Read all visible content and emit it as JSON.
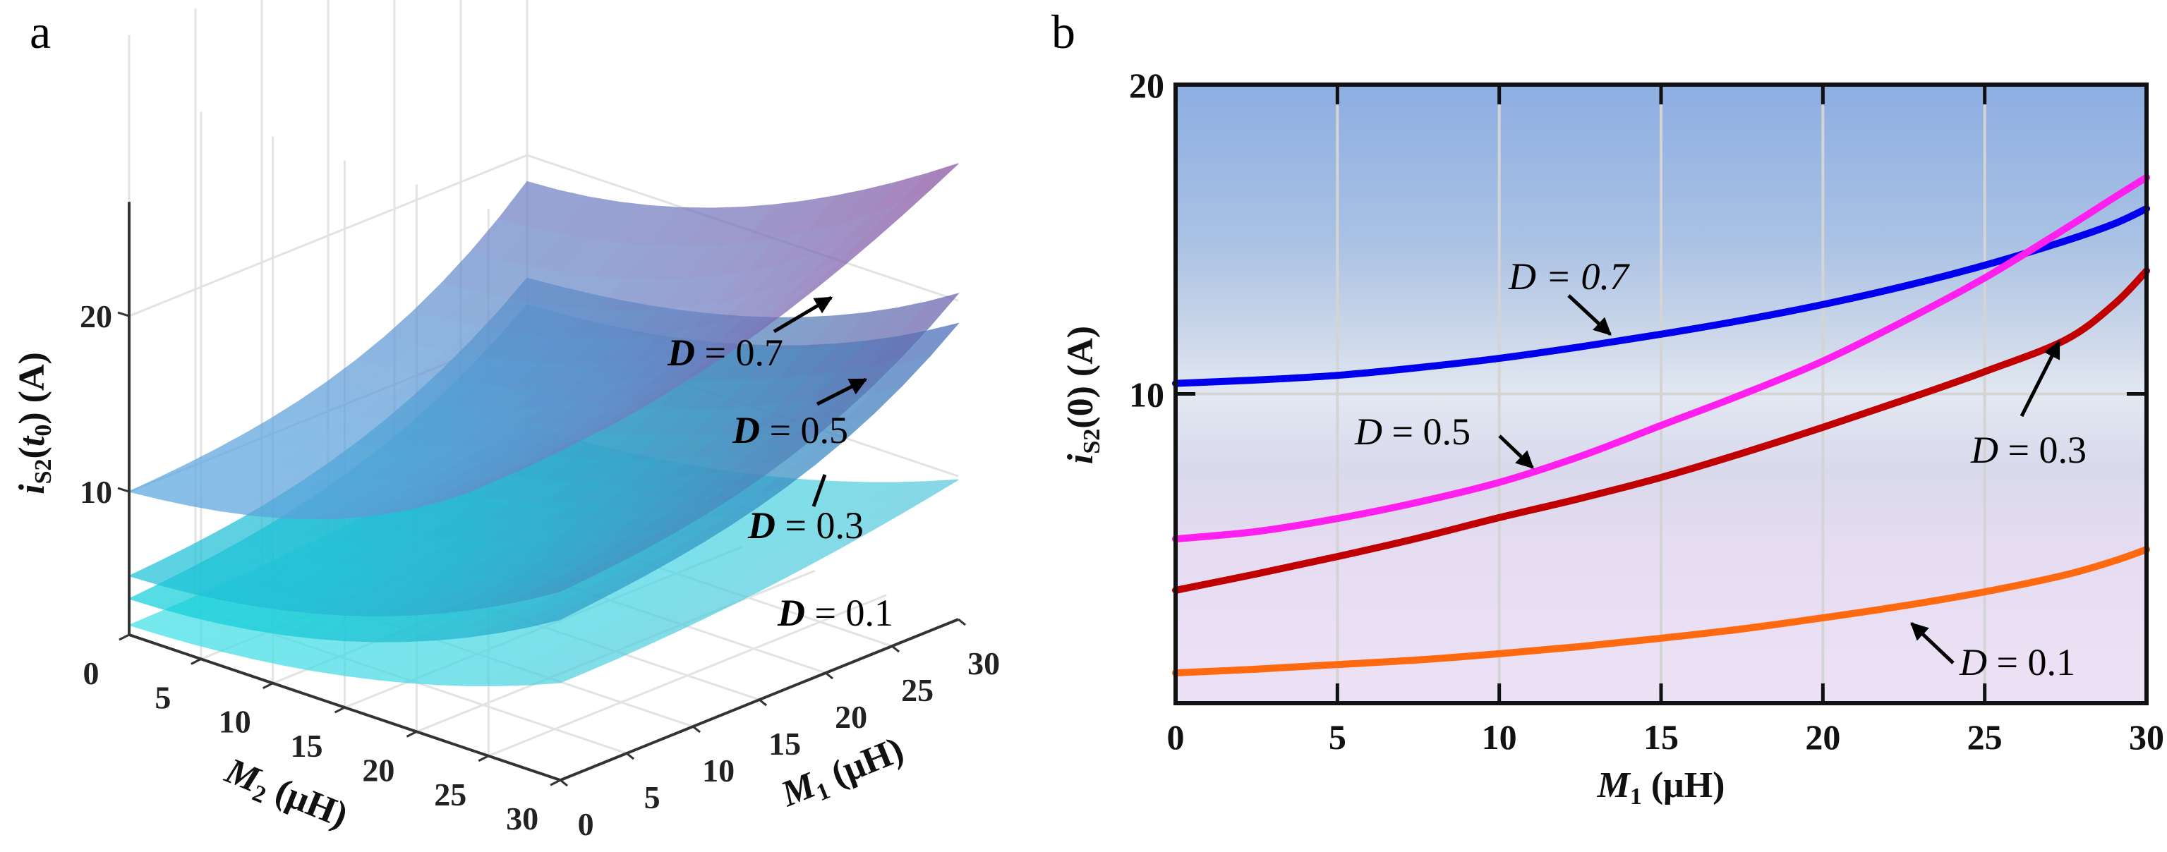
{
  "figure": {
    "panel_a_label": "a",
    "panel_b_label": "b"
  },
  "chart_data": [
    {
      "id": "panel-a",
      "type": "surface3d",
      "title": "",
      "xlabel": "M1 (μH)",
      "ylabel": "M2 (μH)",
      "zlabel": "iS2(t0) (A)",
      "x_ticks": [
        "0",
        "5",
        "10",
        "15",
        "20",
        "25",
        "30"
      ],
      "y_ticks": [
        "0",
        "5",
        "10",
        "15",
        "20",
        "25",
        "30"
      ],
      "z_ticks": [
        "10",
        "20"
      ],
      "xlim": [
        0,
        30
      ],
      "ylim": [
        0,
        30
      ],
      "zlim": [
        1.85,
        28
      ],
      "grid": true,
      "grid_axes_x": [
        0,
        10,
        20,
        30
      ],
      "grid_axes_y": [
        0,
        10,
        20,
        30
      ],
      "surfaces": [
        {
          "name": "D = 0.1",
          "color_low": "#3fe0e6",
          "color_high": "#5cc7dc",
          "z": [
            [
              2.4,
              2.7,
              3.4,
              4.6
            ],
            [
              3.0,
              3.3,
              4.0,
              5.3
            ],
            [
              4.6,
              4.9,
              5.7,
              7.0
            ],
            [
              7.4,
              7.7,
              8.5,
              9.8
            ]
          ]
        },
        {
          "name": "D = 0.3",
          "color_low": "#14d0da",
          "color_high": "#4a63b4",
          "z": [
            [
              3.9,
              4.8,
              7.0,
              11.5
            ],
            [
              4.7,
              5.7,
              7.9,
              12.4
            ],
            [
              7.0,
              7.9,
              10.2,
              14.7
            ],
            [
              11.0,
              12.0,
              14.2,
              18.7
            ]
          ]
        },
        {
          "name": "D = 0.5",
          "color_low": "#1ec3d8",
          "color_high": "#6f5aa8",
          "z": [
            [
              5.2,
              6.1,
              8.4,
              13.0
            ],
            [
              6.1,
              7.0,
              9.3,
              14.0
            ],
            [
              8.5,
              9.4,
              11.8,
              16.3
            ],
            [
              12.6,
              13.5,
              15.8,
              20.4
            ]
          ]
        },
        {
          "name": "D = 0.7",
          "color_low": "#5aa8e0",
          "color_high": "#8a4f9e",
          "z": [
            [
              10.0,
              10.8,
              13.2,
              18.5
            ],
            [
              11.3,
              12.1,
              14.5,
              19.8
            ],
            [
              14.6,
              15.4,
              17.8,
              23.0
            ],
            [
              21.0,
              21.8,
              24.2,
              27.8
            ]
          ]
        }
      ],
      "surface_grid_note": "z rows indexed by M2 = [0,10,20,30], columns by M1 = [0,10,20,30]",
      "annotations": [
        {
          "label": "D = 0.7",
          "target": "D = 0.7"
        },
        {
          "label": "D = 0.5",
          "target": "D = 0.5"
        },
        {
          "label": "D = 0.3",
          "target": "D = 0.3"
        },
        {
          "label": "D = 0.1",
          "target": "D = 0.1"
        }
      ]
    },
    {
      "id": "panel-b",
      "type": "line",
      "title": "",
      "xlabel": "M1 (μH)",
      "ylabel": "iS2(0) (A)",
      "xlim": [
        0,
        30
      ],
      "ylim": [
        0,
        20
      ],
      "x_ticks": [
        "0",
        "5",
        "10",
        "15",
        "20",
        "25",
        "30"
      ],
      "y_ticks": [
        "10",
        "20"
      ],
      "y_tick_values": [
        10,
        20
      ],
      "x_tick_values": [
        0,
        5,
        10,
        15,
        20,
        25,
        30
      ],
      "grid": true,
      "background_gradient": [
        "#8daee2",
        "#a9c1e4",
        "#cfd9ea",
        "#e2e8f2",
        "#d9d9ec",
        "#e6dcf2",
        "#ede2f5"
      ],
      "x": [
        0,
        2.5,
        5,
        7.5,
        10,
        12.5,
        15,
        17.5,
        20,
        22.5,
        25,
        27.5,
        29,
        30
      ],
      "series": [
        {
          "name": "D = 0.7",
          "color": "#0000ee",
          "values": [
            10.34,
            10.45,
            10.6,
            10.85,
            11.15,
            11.52,
            11.93,
            12.38,
            12.89,
            13.48,
            14.16,
            14.95,
            15.5,
            15.99
          ]
        },
        {
          "name": "D = 0.5",
          "color": "#ff20f0",
          "values": [
            5.31,
            5.55,
            5.97,
            6.5,
            7.14,
            7.98,
            8.98,
            9.98,
            11.06,
            12.35,
            13.75,
            15.35,
            16.35,
            17.0
          ]
        },
        {
          "name": "D = 0.3",
          "color": "#c00000",
          "values": [
            3.65,
            4.18,
            4.74,
            5.34,
            6.0,
            6.62,
            7.3,
            8.08,
            8.92,
            9.8,
            10.72,
            11.75,
            12.9,
            13.98
          ]
        },
        {
          "name": "D = 0.1",
          "color": "#ff6a10",
          "values": [
            0.98,
            1.1,
            1.25,
            1.4,
            1.6,
            1.83,
            2.1,
            2.4,
            2.76,
            3.15,
            3.6,
            4.15,
            4.6,
            4.97
          ]
        }
      ],
      "annotations": [
        {
          "label": "D = 0.7",
          "target": "D = 0.7",
          "arrow_to": [
            13.5,
            11.68
          ]
        },
        {
          "label": "D = 0.5",
          "target": "D = 0.5",
          "arrow_to": [
            11.2,
            7.4
          ]
        },
        {
          "label": "D = 0.3",
          "target": "D = 0.3",
          "arrow_to": [
            27.4,
            11.85
          ]
        },
        {
          "label": "D = 0.1",
          "target": "D = 0.1",
          "arrow_to": [
            22.7,
            2.6
          ]
        }
      ]
    }
  ]
}
